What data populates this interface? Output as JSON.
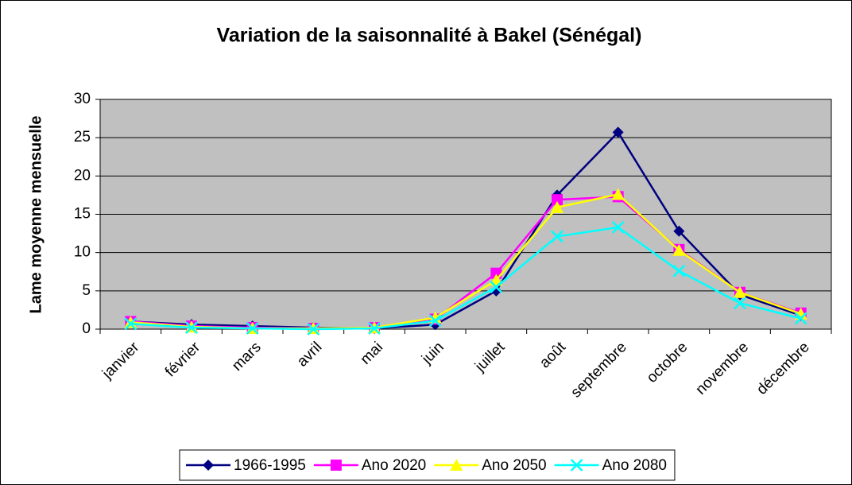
{
  "chart_data": {
    "type": "line",
    "title": "Variation de la saisonnalité à Bakel (Sénégal)",
    "y_label": "Lame moyenne mensuelle",
    "categories": [
      "janvier",
      "février",
      "mars",
      "avril",
      "mai",
      "juin",
      "juillet",
      "août",
      "septembre",
      "octobre",
      "novembre",
      "décembre"
    ],
    "series": [
      {
        "name": "1966-1995",
        "color": "#000080",
        "marker": "diamond",
        "values": [
          1.0,
          0.6,
          0.4,
          0.2,
          0.1,
          0.6,
          5.0,
          17.5,
          25.7,
          12.8,
          4.5,
          1.8
        ]
      },
      {
        "name": "Ano 2020",
        "color": "#FF00FF",
        "marker": "square",
        "values": [
          1.0,
          0.4,
          0.2,
          0.1,
          0.2,
          1.3,
          7.3,
          16.9,
          17.3,
          10.4,
          4.8,
          2.1
        ]
      },
      {
        "name": "Ano 2050",
        "color": "#FFFF00",
        "marker": "triangle",
        "values": [
          0.9,
          0.3,
          0.1,
          0.1,
          0.2,
          1.5,
          6.4,
          15.9,
          17.6,
          10.3,
          4.8,
          2.0
        ]
      },
      {
        "name": "Ano 2080",
        "color": "#00FFFF",
        "marker": "x",
        "values": [
          0.7,
          0.2,
          0.1,
          0.0,
          0.1,
          1.1,
          5.5,
          12.1,
          13.3,
          7.6,
          3.4,
          1.4
        ]
      }
    ],
    "ylim": [
      0,
      30
    ],
    "yticks": [
      0,
      5,
      10,
      15,
      20,
      25,
      30
    ],
    "grid": true,
    "legend": "bottom"
  }
}
